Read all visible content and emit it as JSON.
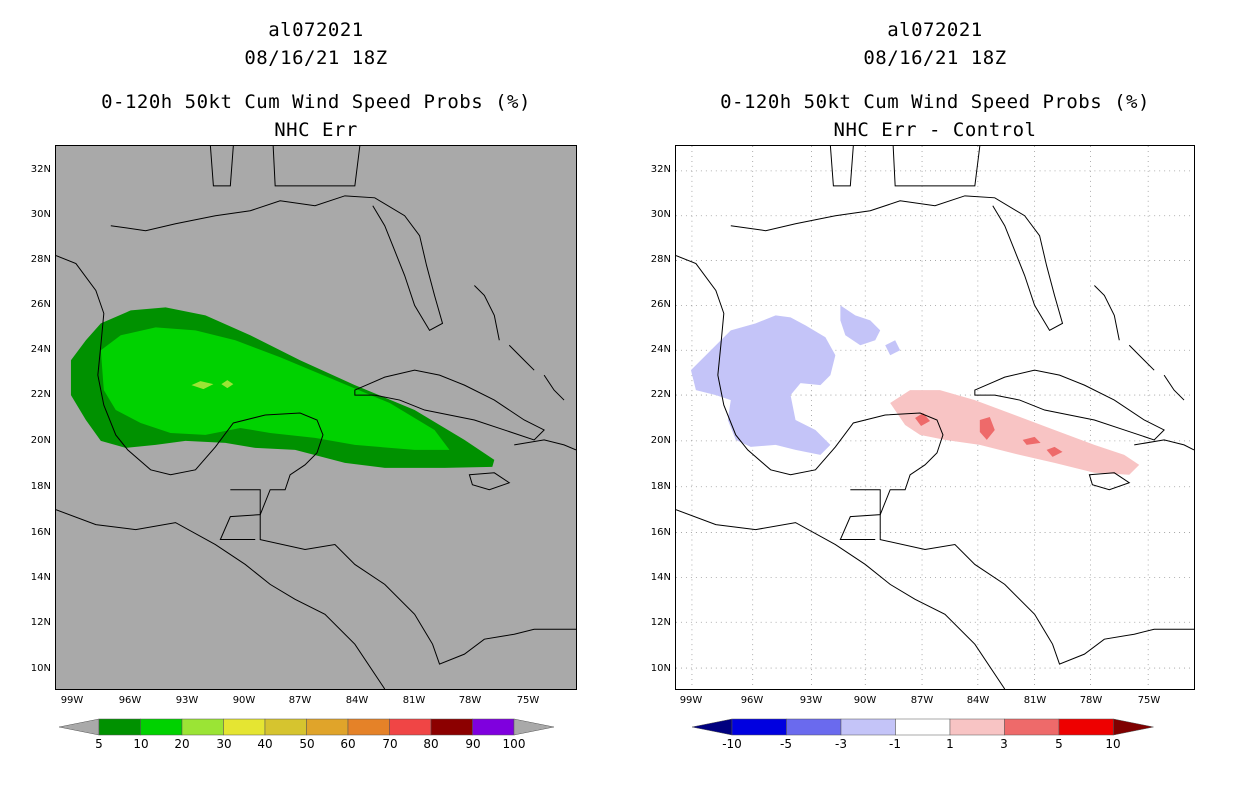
{
  "left_panel": {
    "storm_id": "al072021",
    "datetime": "08/16/21 18Z",
    "product": "0-120h 50kt Cum Wind Speed Probs (%)",
    "subtitle": "NHC Err",
    "background_color": "#a9a9a9"
  },
  "right_panel": {
    "storm_id": "al072021",
    "datetime": "08/16/21 18Z",
    "product": "0-120h 50kt Cum Wind Speed Probs (%)",
    "subtitle": "NHC Err - Control",
    "background_color": "#ffffff"
  },
  "lat_labels": [
    "32N",
    "30N",
    "28N",
    "26N",
    "24N",
    "22N",
    "20N",
    "18N",
    "16N",
    "14N",
    "12N",
    "10N"
  ],
  "lon_labels": [
    "99W",
    "96W",
    "93W",
    "90W",
    "87W",
    "84W",
    "81W",
    "78W",
    "75W"
  ],
  "left_colorbar": {
    "labels": [
      "5",
      "10",
      "20",
      "30",
      "40",
      "50",
      "60",
      "70",
      "80",
      "90",
      "100"
    ],
    "colors": [
      "#009100",
      "#00d200",
      "#9be435",
      "#e5e532",
      "#d6c42f",
      "#e0a42a",
      "#e58228",
      "#f04545",
      "#8c0000",
      "#7f00de"
    ],
    "under_color": "#a9a9a9",
    "over_color": "#a9a9a9"
  },
  "right_colorbar": {
    "labels": [
      "-10",
      "-5",
      "-3",
      "-1",
      "1",
      "3",
      "5",
      "10"
    ],
    "colors": [
      "#0000e0",
      "#6a6aee",
      "#c4c4f8",
      "#ffffff",
      "#f8c4c4",
      "#ee6a6a",
      "#ee0000"
    ],
    "under_color": "#00007f",
    "over_color": "#7f0000"
  }
}
